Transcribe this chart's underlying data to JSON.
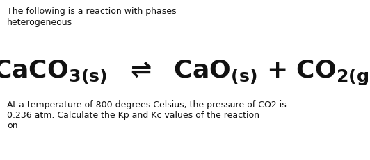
{
  "bg_color": "#ffffff",
  "text_color": "#111111",
  "top_line1": "The following is a reaction with phases",
  "top_line2": "heterogeneous",
  "bottom_line1": "At a temperature of 800 degrees Celsius, the pressure of CO2 is",
  "bottom_line2": "0.236 atm. Calculate the Kp and Kc values of the reaction",
  "bottom_line3": "on",
  "fig_width": 5.32,
  "fig_height": 2.32,
  "dpi": 100,
  "small_fontsize": 9.0,
  "eq_fontsize": 26
}
